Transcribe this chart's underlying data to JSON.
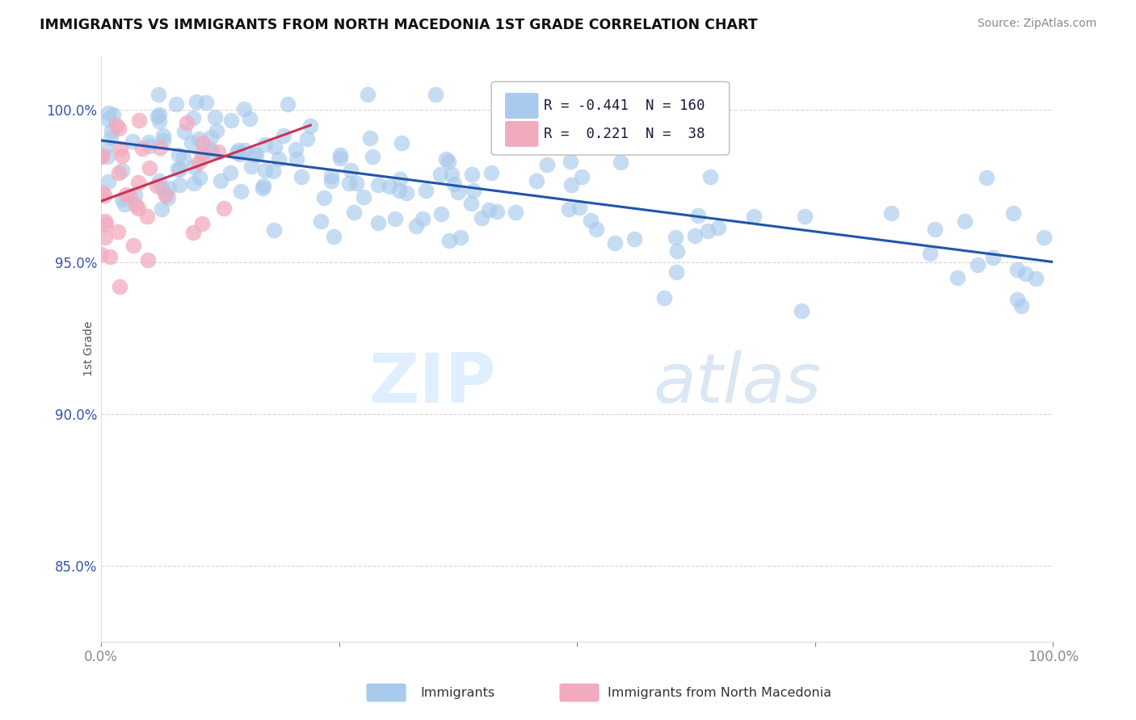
{
  "title": "IMMIGRANTS VS IMMIGRANTS FROM NORTH MACEDONIA 1ST GRADE CORRELATION CHART",
  "source": "Source: ZipAtlas.com",
  "ylabel": "1st Grade",
  "xmin": 0.0,
  "xmax": 1.0,
  "ymin": 0.825,
  "ymax": 1.018,
  "yticks": [
    0.85,
    0.9,
    0.95,
    1.0
  ],
  "ytick_labels": [
    "85.0%",
    "90.0%",
    "95.0%",
    "100.0%"
  ],
  "blue_color": "#A8CAEC",
  "pink_color": "#F2ABBE",
  "blue_line_color": "#2255AA",
  "pink_line_color": "#CC3355",
  "legend_R1": "-0.441",
  "legend_N1": "160",
  "legend_R2": "0.221",
  "legend_N2": "38",
  "legend_label1": "Immigrants",
  "legend_label2": "Immigrants from North Macedonia",
  "watermark_zip": "ZIP",
  "watermark_atlas": "atlas",
  "blue_trend_x0": 0.0,
  "blue_trend_x1": 1.0,
  "blue_trend_y0": 0.99,
  "blue_trend_y1": 0.95,
  "pink_trend_x0": 0.0,
  "pink_trend_x1": 0.22,
  "pink_trend_y0": 0.97,
  "pink_trend_y1": 0.995
}
